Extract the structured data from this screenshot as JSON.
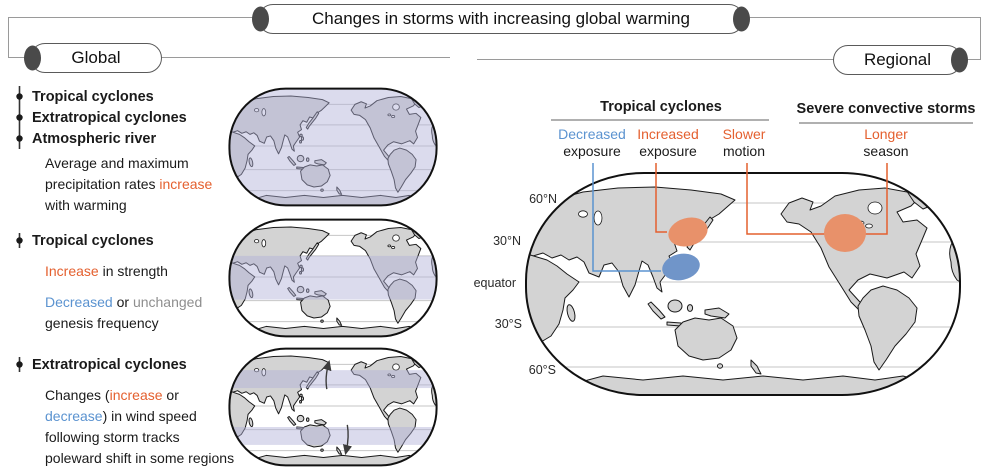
{
  "title": "Changes in storms with increasing global warming",
  "colors": {
    "orange": "#e4602f",
    "blue": "#5b93d0",
    "gray": "#8e8e8e",
    "land": "#d3d3d3",
    "band": "#b0b0d8",
    "ellipse_orange": "#e8916a",
    "ellipse_blue": "#7095c9"
  },
  "global": {
    "label": "Global",
    "blocks": [
      {
        "bullets": [
          "Tropical cyclones",
          "Extratropical cyclones",
          "Atmospheric river"
        ],
        "desc": [
          {
            "text": "Average and maximum\nprecipitation rates "
          },
          {
            "text": "increase",
            "color": "orange"
          },
          {
            "text": "\nwith warming"
          }
        ]
      },
      {
        "bullets": [
          "Tropical cyclones"
        ],
        "desc": [
          {
            "text": "Increase",
            "color": "orange"
          },
          {
            "text": " in strength"
          }
        ],
        "desc2": [
          {
            "text": "Decreased",
            "color": "blue"
          },
          {
            "text": " or "
          },
          {
            "text": "unchanged",
            "color": "gray"
          },
          {
            "text": "\ngenesis frequency"
          }
        ]
      },
      {
        "bullets": [
          "Extratropical cyclones"
        ],
        "desc": [
          {
            "text": "Changes ("
          },
          {
            "text": "increase",
            "color": "orange"
          },
          {
            "text": " or\n"
          },
          {
            "text": "decrease",
            "color": "blue"
          },
          {
            "text": ") in wind speed\nfollowing storm tracks\npoleward shift in some regions"
          }
        ]
      }
    ]
  },
  "regional": {
    "label": "Regional",
    "groups": [
      {
        "title": "Tropical cyclones"
      },
      {
        "title": "Severe convective storms"
      }
    ],
    "legend": [
      {
        "word": "Decreased",
        "word_color": "blue",
        "rest": "exposure"
      },
      {
        "word": "Increased",
        "word_color": "orange",
        "rest": "exposure"
      },
      {
        "word": "Slower",
        "word_color": "orange",
        "rest": "motion"
      },
      {
        "word": "Longer",
        "word_color": "orange",
        "rest": "season"
      }
    ],
    "latitudes": [
      "60°N",
      "30°N",
      "equator",
      "30°S",
      "60°S"
    ],
    "map_highlights": [
      {
        "region": "northwest-pacific",
        "meaning": "decreased exposure",
        "color": "blue"
      },
      {
        "region": "east-asia",
        "meaning": "increased exposure",
        "color": "orange"
      },
      {
        "region": "united-states",
        "meaning": "slower motion / longer season",
        "color": "orange"
      }
    ]
  }
}
